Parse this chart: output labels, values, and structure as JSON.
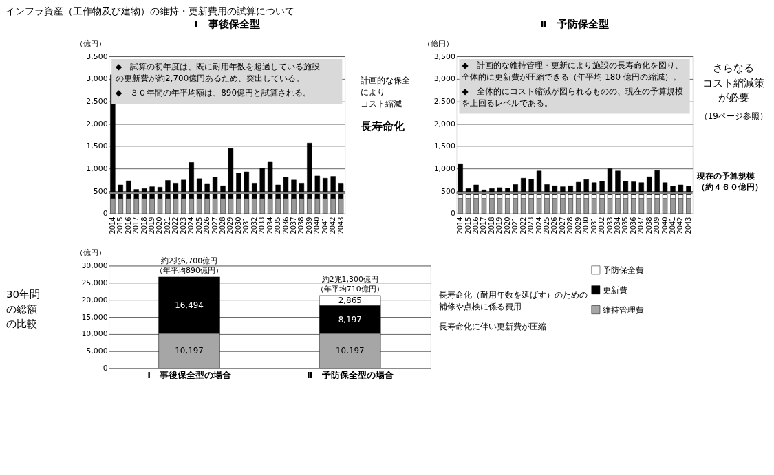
{
  "chart_data": [
    {
      "type": "bar",
      "title": "Ⅰ　事後保全型",
      "ylabel": "（億円）",
      "stacked": true,
      "grid": "y",
      "annotations": [
        "インフラ資産（工作物及び建物）の維持・更新費用の試算について",
        "◆　試算の初年度は、既に耐用年数を超過している施設の更新費が約2,700億円あるため、突出している。",
        "◆　３０年間の年平均額は、890億円と試算される。"
      ],
      "categories": [
        "2014",
        "2015",
        "2016",
        "2017",
        "2018",
        "2019",
        "2020",
        "2021",
        "2022",
        "2023",
        "2024",
        "2025",
        "2026",
        "2027",
        "2028",
        "2029",
        "2030",
        "2031",
        "2032",
        "2033",
        "2034",
        "2035",
        "2036",
        "2037",
        "2038",
        "2039",
        "2040",
        "2041",
        "2042",
        "2043"
      ],
      "series": [
        {
          "color": "#999999",
          "values": [
            340,
            340,
            340,
            340,
            340,
            340,
            340,
            340,
            340,
            340,
            340,
            340,
            340,
            340,
            340,
            340,
            340,
            340,
            340,
            340,
            340,
            340,
            340,
            340,
            340,
            340,
            340,
            340,
            340,
            340
          ]
        },
        {
          "color": "#000000",
          "values": [
            2750,
            300,
            390,
            200,
            220,
            260,
            250,
            400,
            340,
            410,
            800,
            440,
            330,
            470,
            280,
            1110,
            560,
            590,
            340,
            670,
            820,
            300,
            470,
            410,
            340,
            1230,
            500,
            450,
            490,
            340
          ]
        }
      ],
      "ylim": [
        0,
        3500
      ],
      "yticks": [
        0,
        500,
        {
          "value": 1000,
          "label": "1,000"
        },
        {
          "value": 1500,
          "label": "1,500"
        },
        {
          "value": 2000,
          "label": "2,000"
        },
        {
          "value": 2500,
          "label": "2,500"
        },
        {
          "value": 3000,
          "label": "3,000"
        },
        {
          "value": 3500,
          "label": "3,500"
        }
      ],
      "ref_lines": [
        {
          "axis": "y",
          "value": 460,
          "color": "#808080"
        }
      ]
    },
    {
      "type": "bar",
      "title": "Ⅱ　予防保全型",
      "ylabel": "（億円）",
      "stacked": true,
      "grid": "y",
      "annotations": [
        "◆　計画的な維持管理・更新により施設の長寿命化を図り、全体的に更新費が圧縮できる（年平均 180 億円の縮減）。",
        "◆　全体的にコスト縮減が図られるものの、現在の予算規模を上回るレベルである。",
        "計画的な保全によりコスト縮減",
        "長寿命化",
        "さらなるコスト縮減策が必要",
        "（19ページ参照）"
      ],
      "categories": [
        "2014",
        "2015",
        "2016",
        "2017",
        "2018",
        "2019",
        "2020",
        "2021",
        "2022",
        "2023",
        "2024",
        "2025",
        "2026",
        "2027",
        "2028",
        "2029",
        "2030",
        "2031",
        "2032",
        "2033",
        "2034",
        "2035",
        "2036",
        "2037",
        "2038",
        "2039",
        "2040",
        "2041",
        "2042",
        "2043"
      ],
      "series": [
        {
          "color": "#999999",
          "values": [
            340,
            340,
            340,
            340,
            340,
            340,
            340,
            340,
            340,
            340,
            340,
            340,
            340,
            340,
            340,
            340,
            340,
            340,
            340,
            340,
            340,
            340,
            340,
            340,
            340,
            340,
            340,
            340,
            340,
            340
          ]
        },
        {
          "color": "#ffffff",
          "values": [
            95,
            95,
            95,
            95,
            95,
            95,
            95,
            95,
            95,
            95,
            95,
            95,
            95,
            95,
            95,
            95,
            95,
            95,
            95,
            95,
            95,
            95,
            95,
            95,
            95,
            95,
            95,
            95,
            95,
            95
          ]
        },
        {
          "color": "#000000",
          "values": [
            675,
            125,
            205,
            95,
            125,
            145,
            135,
            215,
            355,
            335,
            515,
            215,
            185,
            165,
            185,
            265,
            325,
            255,
            285,
            565,
            515,
            285,
            275,
            255,
            385,
            525,
            255,
            175,
            205,
            175
          ]
        }
      ],
      "ylim": [
        0,
        3500
      ],
      "yticks": [
        0,
        500,
        {
          "value": 1000,
          "label": "1,000"
        },
        {
          "value": 1500,
          "label": "1,500"
        },
        {
          "value": 2000,
          "label": "2,000"
        },
        {
          "value": 2500,
          "label": "2,500"
        },
        {
          "value": 3000,
          "label": "3,000"
        },
        {
          "value": 3500,
          "label": "3,500"
        }
      ],
      "ref_lines": [
        {
          "axis": "y",
          "value": 460,
          "label": "現在の予算規模（約４６０億円）",
          "color": "#808080"
        }
      ]
    },
    {
      "type": "bar",
      "ylabel": "（億円）",
      "stacked": true,
      "grid": "y",
      "legend": "right",
      "annotations": [
        "30年間の総額の比較",
        "長寿命化（耐用年数を延ばす）のための補修や点検に係る費用",
        "長寿命化に伴い更新費が圧縮"
      ],
      "categories": [
        "Ⅰ　事後保全型の場合",
        "Ⅱ　予防保全型の場合"
      ],
      "series": [
        {
          "name": "維持管理費",
          "color": "#a6a6a6",
          "values": [
            10197,
            10197
          ],
          "value_labels": [
            "10,197",
            "10,197"
          ]
        },
        {
          "name": "更新費",
          "color": "#000000",
          "values": [
            16494,
            8197
          ],
          "value_labels": [
            "16,494",
            "8,197"
          ]
        },
        {
          "name": "予防保全費",
          "color": "#ffffff",
          "values": [
            null,
            2865
          ],
          "value_labels": [
            null,
            "2,865"
          ]
        }
      ],
      "totals": [
        "約2兆6,700億円（年平均890億円）",
        "約2兆1,300億円（年平均710億円）"
      ],
      "ylim": [
        0,
        30000
      ],
      "yticks": [
        0,
        {
          "value": 5000,
          "label": "5,000"
        },
        {
          "value": 10000,
          "label": "10,000"
        },
        {
          "value": 15000,
          "label": "15,000"
        },
        {
          "value": 20000,
          "label": "20,000"
        },
        {
          "value": 25000,
          "label": "25,000"
        },
        {
          "value": 30000,
          "label": "30,000"
        }
      ]
    }
  ]
}
